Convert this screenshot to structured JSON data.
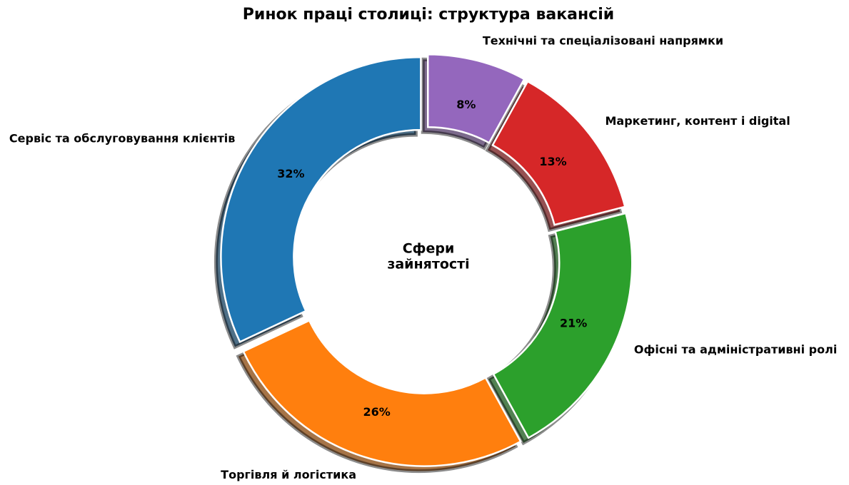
{
  "chart_data": {
    "type": "donut",
    "title": "Ринок праці столиці: структура вакансій",
    "center_label": [
      "Сфери",
      "зайнятості"
    ],
    "categories": [
      "Сервіс та обслуговування клієнтів",
      "Торгівля й логістика",
      "Офісні та адміністративні ролі",
      "Маркетинг, контент і digital",
      "Технічні та спеціалізовані напрямки"
    ],
    "values": [
      32,
      26,
      21,
      13,
      8
    ],
    "value_labels": [
      "32%",
      "26%",
      "21%",
      "13%",
      "8%"
    ],
    "colors": [
      "#1f77b4",
      "#ff7f0e",
      "#2ca02c",
      "#d62728",
      "#9467bd"
    ]
  }
}
